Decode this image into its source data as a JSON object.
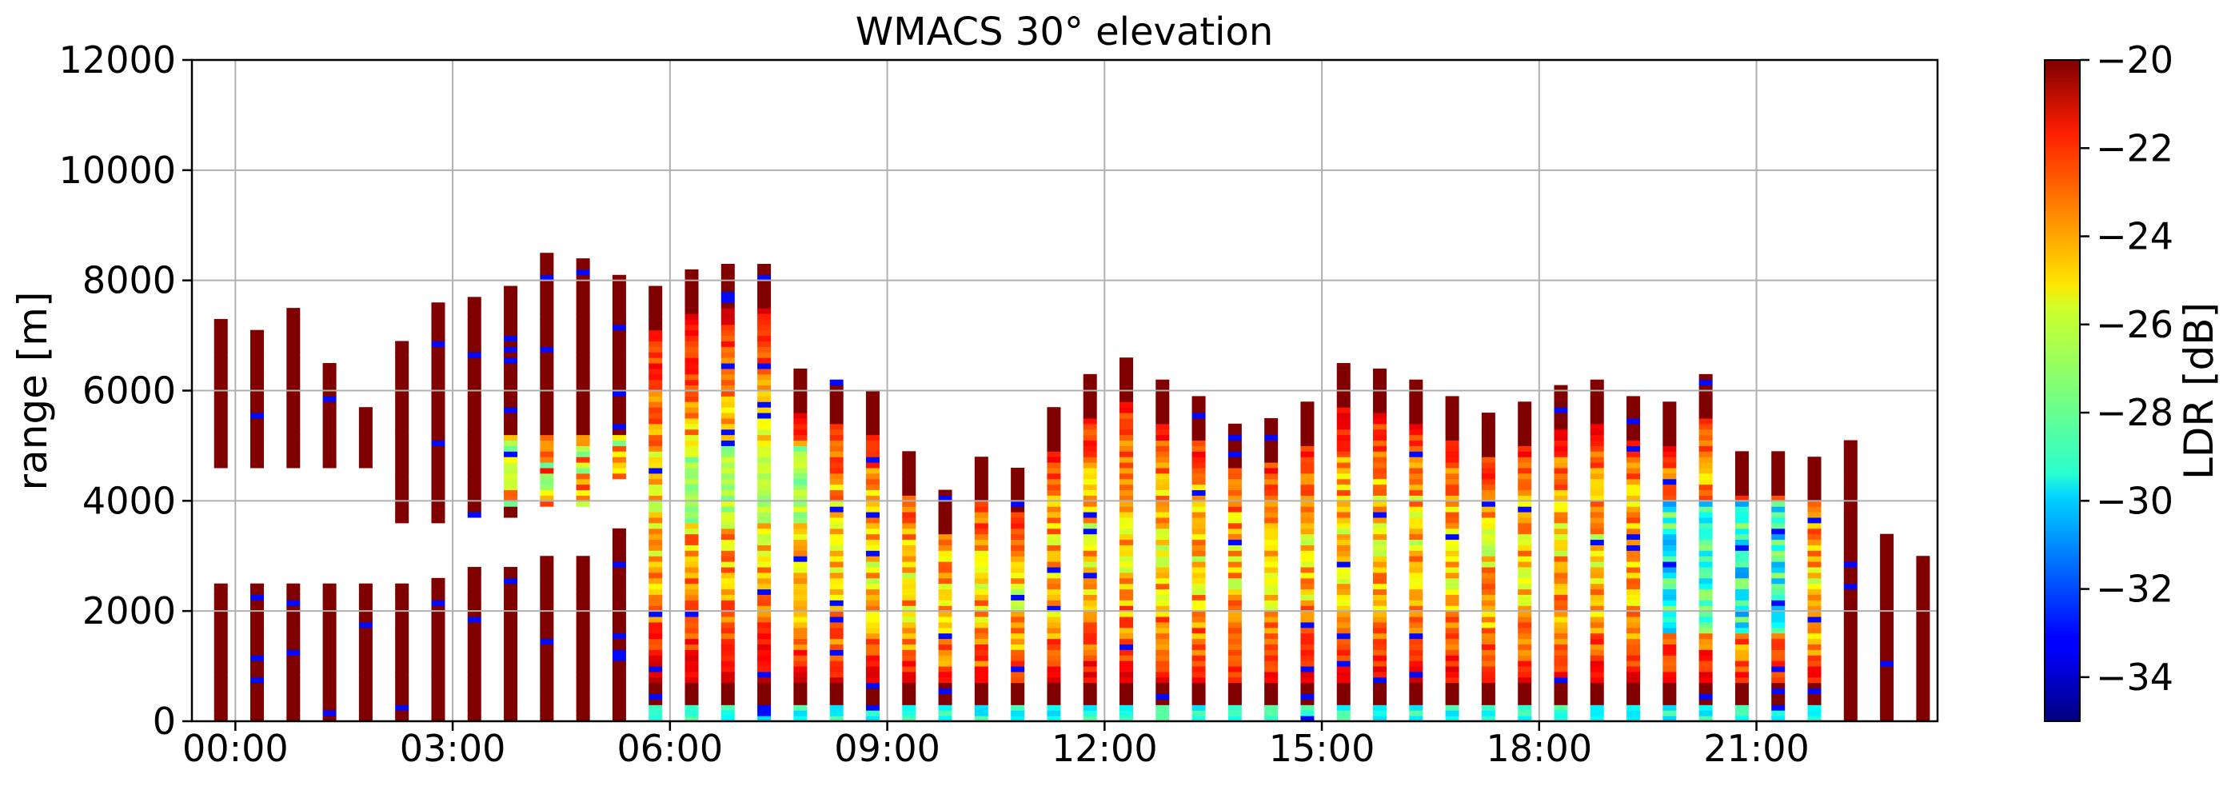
{
  "chart_data": {
    "type": "heatmap",
    "title": "WMACS 30° elevation",
    "xlabel": "",
    "ylabel": "range [m]",
    "xlim_hours": [
      -0.6,
      23.5
    ],
    "ylim": [
      0,
      12000
    ],
    "grid": true,
    "x_tick_labels": [
      "00:00",
      "03:00",
      "06:00",
      "09:00",
      "12:00",
      "15:00",
      "18:00",
      "21:00"
    ],
    "x_tick_hours": [
      0,
      3,
      6,
      9,
      12,
      15,
      18,
      21
    ],
    "y_tick_labels": [
      "0",
      "2000",
      "4000",
      "6000",
      "8000",
      "10000",
      "12000"
    ],
    "y_ticks": [
      0,
      2000,
      4000,
      6000,
      8000,
      10000,
      12000
    ],
    "colorbar": {
      "label": "LDR [dB]",
      "range": [
        -35,
        -20
      ],
      "tick_values": [
        -20,
        -22,
        -24,
        -26,
        -28,
        -30,
        -32,
        -34
      ],
      "tick_labels": [
        "−20",
        "−22",
        "−24",
        "−26",
        "−28",
        "−30",
        "−32",
        "−34"
      ],
      "colormap": "jet"
    },
    "scan_columns": [
      {
        "t": -0.2,
        "top": 2500,
        "top2": 7300
      },
      {
        "t": 0.3,
        "top": 2500,
        "top2": 7100
      },
      {
        "t": 0.8,
        "top": 2500,
        "top2": 7500
      },
      {
        "t": 1.3,
        "top": 2500,
        "top2": 6500
      },
      {
        "t": 1.8,
        "top": 2500,
        "top2": 5700
      },
      {
        "t": 2.3,
        "top": 2500,
        "top2": 6900
      },
      {
        "t": 2.8,
        "top": 2600,
        "top2": 7600
      },
      {
        "t": 3.3,
        "top": 2800,
        "top2": 7700
      },
      {
        "t": 3.8,
        "top": 2800,
        "top2": 7900
      },
      {
        "t": 4.3,
        "top": 3000,
        "top2": 8500
      },
      {
        "t": 4.8,
        "top": 3000,
        "top2": 8400
      },
      {
        "t": 5.3,
        "top": 3500,
        "top2": 8100
      },
      {
        "t": 5.8,
        "top": 7900
      },
      {
        "t": 6.3,
        "top": 8200
      },
      {
        "t": 6.8,
        "top": 8300
      },
      {
        "t": 7.3,
        "top": 8300
      },
      {
        "t": 7.8,
        "top": 6400
      },
      {
        "t": 8.3,
        "top": 6200
      },
      {
        "t": 8.8,
        "top": 6000
      },
      {
        "t": 9.3,
        "top": 4900
      },
      {
        "t": 9.8,
        "top": 4200
      },
      {
        "t": 10.3,
        "top": 4800
      },
      {
        "t": 10.8,
        "top": 4600
      },
      {
        "t": 11.3,
        "top": 5700
      },
      {
        "t": 11.8,
        "top": 6300
      },
      {
        "t": 12.3,
        "top": 6600
      },
      {
        "t": 12.8,
        "top": 6200
      },
      {
        "t": 13.3,
        "top": 5900
      },
      {
        "t": 13.8,
        "top": 5400
      },
      {
        "t": 14.3,
        "top": 5500
      },
      {
        "t": 14.8,
        "top": 5800
      },
      {
        "t": 15.3,
        "top": 6500
      },
      {
        "t": 15.8,
        "top": 6400
      },
      {
        "t": 16.3,
        "top": 6200
      },
      {
        "t": 16.8,
        "top": 5900
      },
      {
        "t": 17.3,
        "top": 5600
      },
      {
        "t": 17.8,
        "top": 5800
      },
      {
        "t": 18.3,
        "top": 6100
      },
      {
        "t": 18.8,
        "top": 6200
      },
      {
        "t": 19.3,
        "top": 5900
      },
      {
        "t": 19.8,
        "top": 5800
      },
      {
        "t": 20.3,
        "top": 6300
      },
      {
        "t": 20.8,
        "top": 4900
      },
      {
        "t": 21.3,
        "top": 4900
      },
      {
        "t": 21.8,
        "top": 4800
      },
      {
        "t": 22.3,
        "top": 5100
      },
      {
        "t": 22.8,
        "top": 3400
      },
      {
        "t": 23.3,
        "top": 3000
      }
    ]
  }
}
